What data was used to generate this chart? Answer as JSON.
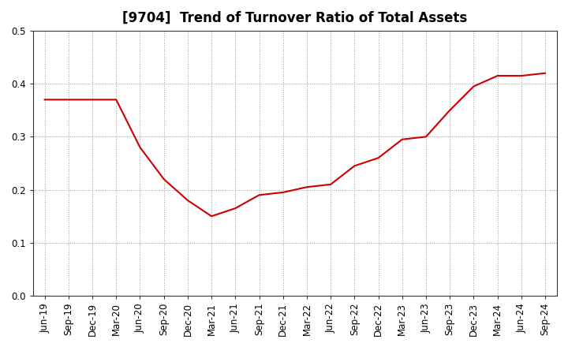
{
  "title": "[9704]  Trend of Turnover Ratio of Total Assets",
  "x_labels": [
    "Jun-19",
    "Sep-19",
    "Dec-19",
    "Mar-20",
    "Jun-20",
    "Sep-20",
    "Dec-20",
    "Mar-21",
    "Jun-21",
    "Sep-21",
    "Dec-21",
    "Mar-22",
    "Jun-22",
    "Sep-22",
    "Dec-22",
    "Mar-23",
    "Jun-23",
    "Sep-23",
    "Dec-23",
    "Mar-24",
    "Jun-24",
    "Sep-24"
  ],
  "y_values": [
    0.37,
    0.37,
    0.37,
    0.37,
    0.28,
    0.22,
    0.18,
    0.15,
    0.165,
    0.19,
    0.195,
    0.205,
    0.21,
    0.245,
    0.26,
    0.295,
    0.3,
    0.35,
    0.395,
    0.415,
    0.415,
    0.42
  ],
  "line_color": "#cc0000",
  "line_width": 1.5,
  "ylim": [
    0.0,
    0.5
  ],
  "yticks": [
    0.0,
    0.1,
    0.2,
    0.3,
    0.4,
    0.5
  ],
  "grid_color": "#999999",
  "grid_linestyle": ":",
  "background_color": "#ffffff",
  "title_fontsize": 12,
  "tick_fontsize": 8.5,
  "spine_color": "#333333"
}
